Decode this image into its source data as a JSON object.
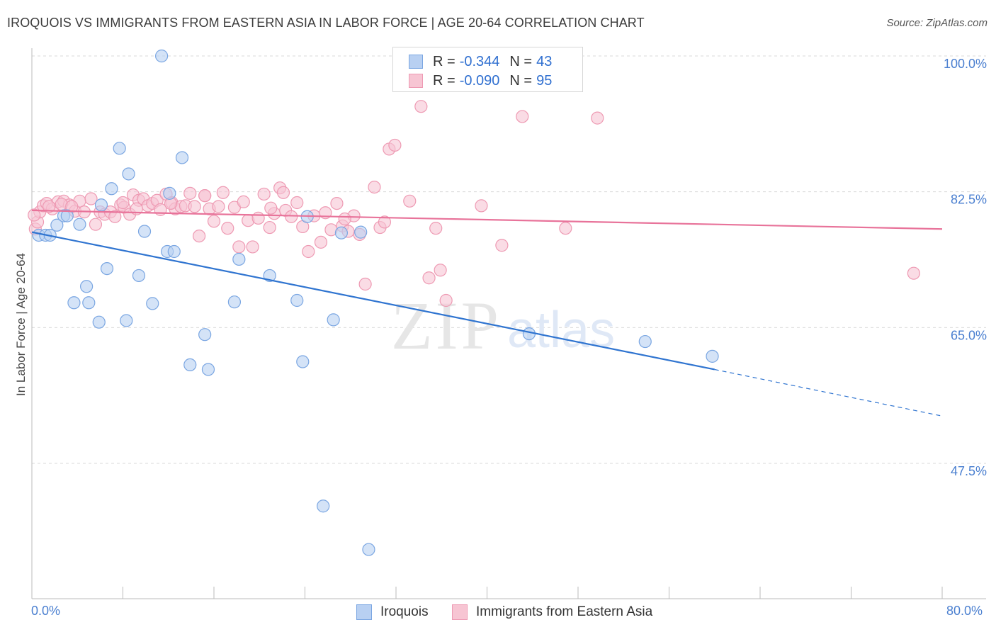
{
  "title": "IROQUOIS VS IMMIGRANTS FROM EASTERN ASIA IN LABOR FORCE | AGE 20-64 CORRELATION CHART",
  "source": "Source: ZipAtlas.com",
  "legend": {
    "rows": [
      {
        "r_label": "R =",
        "r_value": "-0.344",
        "n_label": "N =",
        "n_value": "43"
      },
      {
        "r_label": "R =",
        "r_value": "-0.090",
        "n_label": "N =",
        "n_value": "95"
      }
    ]
  },
  "bottom_legend": {
    "series1": "Iroquois",
    "series2": "Immigrants from Eastern Asia"
  },
  "x_axis": {
    "min_label": "0.0%",
    "max_label": "80.0%"
  },
  "watermark": {
    "zip": "ZIP",
    "atlas": "atlas"
  },
  "colors": {
    "blue_fill": "#b8d0f2",
    "blue_stroke": "#7aa6e2",
    "blue_line": "#2f74d0",
    "pink_fill": "#f7c5d3",
    "pink_stroke": "#ee9ab3",
    "pink_line": "#e8739a",
    "grid": "#d9d9d9",
    "tick_label": "#4a7fd0"
  },
  "chart_data": {
    "type": "scatter",
    "title": "IROQUOIS VS IMMIGRANTS FROM EASTERN ASIA IN LABOR FORCE | AGE 20-64 CORRELATION CHART",
    "xlabel": "",
    "ylabel": "In Labor Force | Age 20-64",
    "xlim": [
      0,
      80
    ],
    "ylim": [
      35,
      102
    ],
    "y_ticks": [
      47.5,
      65.0,
      82.5,
      100.0
    ],
    "y_tick_labels": [
      "47.5%",
      "65.0%",
      "82.5%",
      "100.0%"
    ],
    "x_tick_labels": [
      "0.0%",
      "80.0%"
    ],
    "grid": true,
    "legend_position": "top-center",
    "series": [
      {
        "name": "Iroquois",
        "r": -0.344,
        "n": 43,
        "points": [
          [
            0.6,
            76.9
          ],
          [
            1.2,
            76.9
          ],
          [
            1.6,
            76.9
          ],
          [
            2.2,
            78.2
          ],
          [
            2.8,
            79.4
          ],
          [
            3.1,
            79.4
          ],
          [
            4.2,
            78.3
          ],
          [
            4.8,
            70.3
          ],
          [
            5.0,
            68.2
          ],
          [
            3.7,
            68.2
          ],
          [
            5.9,
            65.7
          ],
          [
            6.1,
            80.8
          ],
          [
            6.6,
            72.6
          ],
          [
            7.0,
            82.9
          ],
          [
            7.7,
            88.1
          ],
          [
            8.3,
            65.9
          ],
          [
            8.5,
            84.8
          ],
          [
            9.4,
            71.7
          ],
          [
            9.9,
            77.4
          ],
          [
            10.6,
            68.1
          ],
          [
            11.4,
            100.0
          ],
          [
            11.9,
            74.8
          ],
          [
            12.1,
            82.3
          ],
          [
            12.5,
            74.8
          ],
          [
            13.2,
            86.9
          ],
          [
            13.9,
            60.2
          ],
          [
            15.2,
            64.1
          ],
          [
            15.5,
            59.6
          ],
          [
            17.8,
            68.3
          ],
          [
            18.2,
            73.8
          ],
          [
            20.9,
            71.7
          ],
          [
            23.3,
            68.5
          ],
          [
            23.8,
            60.6
          ],
          [
            26.5,
            66.0
          ],
          [
            25.6,
            42.0
          ],
          [
            28.9,
            77.3
          ],
          [
            37.7,
            100.0
          ],
          [
            43.7,
            64.2
          ],
          [
            53.9,
            63.2
          ],
          [
            59.8,
            61.3
          ],
          [
            29.6,
            36.4
          ],
          [
            27.2,
            77.2
          ],
          [
            24.2,
            79.3
          ]
        ]
      },
      {
        "name": "Immigrants from Eastern Asia",
        "r": -0.09,
        "n": 95,
        "points": [
          [
            0.3,
            77.7
          ],
          [
            0.5,
            78.6
          ],
          [
            0.7,
            79.9
          ],
          [
            1.0,
            80.7
          ],
          [
            1.3,
            81.0
          ],
          [
            1.8,
            80.3
          ],
          [
            2.3,
            81.2
          ],
          [
            2.8,
            81.3
          ],
          [
            3.3,
            80.8
          ],
          [
            3.8,
            80.0
          ],
          [
            4.2,
            81.3
          ],
          [
            4.6,
            79.9
          ],
          [
            5.2,
            81.6
          ],
          [
            5.6,
            78.3
          ],
          [
            6.0,
            79.9
          ],
          [
            6.4,
            79.6
          ],
          [
            6.9,
            79.9
          ],
          [
            7.3,
            79.3
          ],
          [
            7.8,
            80.8
          ],
          [
            8.1,
            80.5
          ],
          [
            8.6,
            79.6
          ],
          [
            8.9,
            82.1
          ],
          [
            9.4,
            81.4
          ],
          [
            9.8,
            81.6
          ],
          [
            10.2,
            80.7
          ],
          [
            10.6,
            81.0
          ],
          [
            11.0,
            81.4
          ],
          [
            11.3,
            80.2
          ],
          [
            11.8,
            82.2
          ],
          [
            12.3,
            81.1
          ],
          [
            12.6,
            80.3
          ],
          [
            13.1,
            80.6
          ],
          [
            13.5,
            80.7
          ],
          [
            13.9,
            82.3
          ],
          [
            14.3,
            80.6
          ],
          [
            14.7,
            76.8
          ],
          [
            15.2,
            82.0
          ],
          [
            15.6,
            80.3
          ],
          [
            16.0,
            78.7
          ],
          [
            16.4,
            80.6
          ],
          [
            16.8,
            82.4
          ],
          [
            17.2,
            77.8
          ],
          [
            17.8,
            80.5
          ],
          [
            18.2,
            75.4
          ],
          [
            18.6,
            81.2
          ],
          [
            19.0,
            78.8
          ],
          [
            19.4,
            75.4
          ],
          [
            19.9,
            79.1
          ],
          [
            20.4,
            82.2
          ],
          [
            20.9,
            77.9
          ],
          [
            21.3,
            79.7
          ],
          [
            21.8,
            83.0
          ],
          [
            22.3,
            80.1
          ],
          [
            22.8,
            79.3
          ],
          [
            23.3,
            81.1
          ],
          [
            23.8,
            78.0
          ],
          [
            24.3,
            74.8
          ],
          [
            24.8,
            79.4
          ],
          [
            25.4,
            76.0
          ],
          [
            25.8,
            79.8
          ],
          [
            26.3,
            77.6
          ],
          [
            26.8,
            81.0
          ],
          [
            27.3,
            78.1
          ],
          [
            27.8,
            77.4
          ],
          [
            28.3,
            79.4
          ],
          [
            28.8,
            77.0
          ],
          [
            29.3,
            70.6
          ],
          [
            30.1,
            83.1
          ],
          [
            30.6,
            77.9
          ],
          [
            31.0,
            78.6
          ],
          [
            31.4,
            88.0
          ],
          [
            31.9,
            88.5
          ],
          [
            33.2,
            81.3
          ],
          [
            34.2,
            93.5
          ],
          [
            34.9,
            71.4
          ],
          [
            35.5,
            77.8
          ],
          [
            35.9,
            72.4
          ],
          [
            36.4,
            68.5
          ],
          [
            39.5,
            80.7
          ],
          [
            41.3,
            75.6
          ],
          [
            43.1,
            92.2
          ],
          [
            46.9,
            77.8
          ],
          [
            49.7,
            92.0
          ],
          [
            77.5,
            72.0
          ],
          [
            0.2,
            79.5
          ],
          [
            1.5,
            80.6
          ],
          [
            2.6,
            80.9
          ],
          [
            3.5,
            80.6
          ],
          [
            21.0,
            80.4
          ],
          [
            22.1,
            82.4
          ],
          [
            27.5,
            79.0
          ],
          [
            15.2,
            82.0
          ],
          [
            12.2,
            81.0
          ],
          [
            9.2,
            80.3
          ],
          [
            8.0,
            81.1
          ]
        ]
      }
    ],
    "trend_lines": [
      {
        "series": "Iroquois",
        "solid": {
          "x": [
            0,
            60
          ],
          "y": [
            77.3,
            59.6
          ]
        },
        "dashed": {
          "x": [
            60,
            80
          ],
          "y": [
            59.6,
            53.6
          ]
        }
      },
      {
        "series": "Immigrants from Eastern Asia",
        "solid": {
          "x": [
            0,
            80
          ],
          "y": [
            80.1,
            77.7
          ]
        }
      }
    ]
  }
}
